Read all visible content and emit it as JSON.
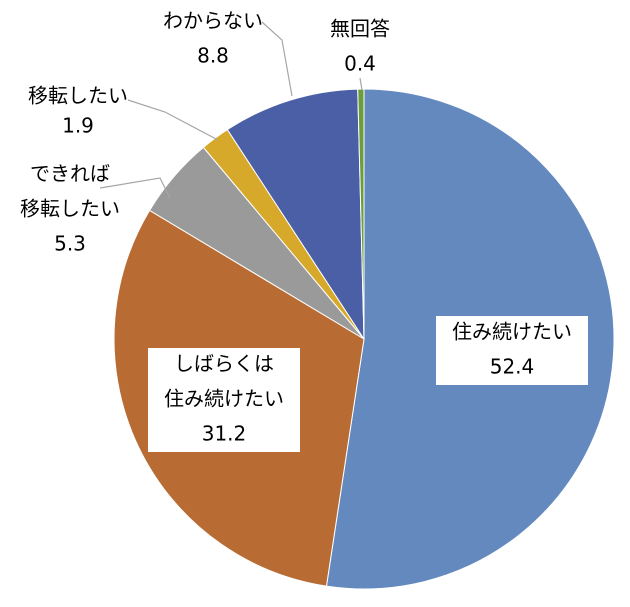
{
  "chart_data": {
    "type": "pie",
    "categories": [
      [
        "住み続けたい"
      ],
      [
        "しばらくは",
        "住み続けたい"
      ],
      [
        "できれば",
        "移転したい"
      ],
      [
        "移転したい"
      ],
      [
        "わからない"
      ],
      [
        "無回答"
      ]
    ],
    "values": [
      52.4,
      31.2,
      5.3,
      1.9,
      8.8,
      0.4
    ],
    "colors": [
      "#6489be",
      "#b86b33",
      "#9a9a9a",
      "#d6a92a",
      "#4b5fa6",
      "#6a9d3c"
    ]
  }
}
